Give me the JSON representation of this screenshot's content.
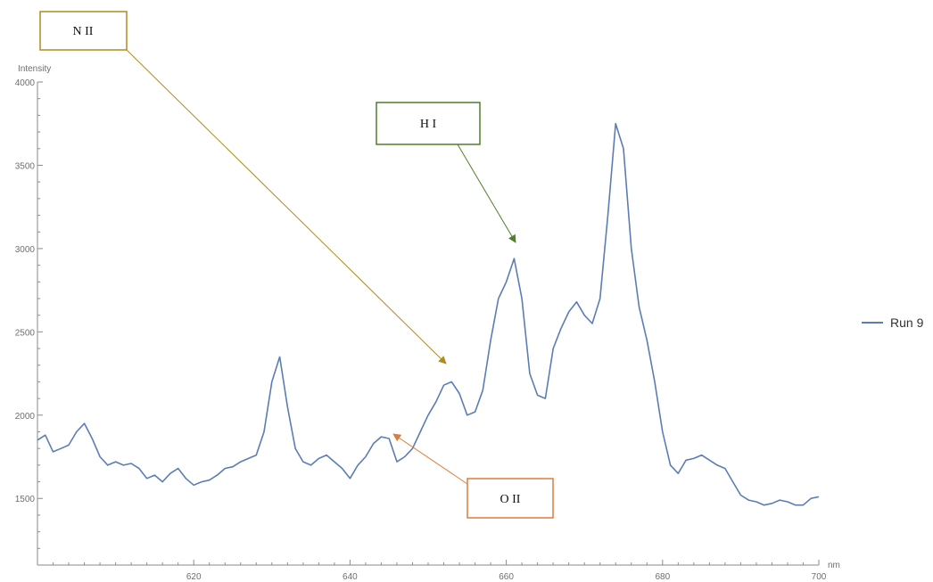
{
  "chart_data": {
    "type": "line",
    "title": "",
    "xlabel": "nm",
    "ylabel": "Intensity",
    "xlim": [
      600,
      700
    ],
    "ylim": [
      1100,
      4000
    ],
    "x_ticks": [
      620,
      640,
      660,
      680,
      700
    ],
    "y_ticks": [
      1500,
      2000,
      2500,
      3000,
      3500,
      4000
    ],
    "grid": false,
    "legend_position": "right",
    "series": [
      {
        "name": "Run 9",
        "color": "#5b7db6",
        "x": [
          600,
          601,
          602,
          603,
          604,
          605,
          606,
          607,
          608,
          609,
          610,
          611,
          612,
          613,
          614,
          615,
          616,
          617,
          618,
          619,
          620,
          621,
          622,
          623,
          624,
          625,
          626,
          627,
          628,
          629,
          630,
          631,
          632,
          633,
          634,
          635,
          636,
          637,
          638,
          639,
          640,
          641,
          642,
          643,
          644,
          645,
          646,
          647,
          648,
          649,
          650,
          651,
          652,
          653,
          654,
          655,
          656,
          657,
          658,
          659,
          660,
          661,
          662,
          663,
          664,
          665,
          666,
          667,
          668,
          669,
          670,
          671,
          672,
          673,
          674,
          675,
          676,
          677,
          678,
          679,
          680,
          681,
          682,
          683,
          684,
          685,
          686,
          687,
          688,
          689,
          690,
          691,
          692,
          693,
          694,
          695,
          696,
          697,
          698,
          699,
          700
        ],
        "values": [
          1850,
          1880,
          1780,
          1800,
          1820,
          1900,
          1950,
          1860,
          1750,
          1700,
          1720,
          1700,
          1710,
          1680,
          1620,
          1640,
          1600,
          1650,
          1680,
          1620,
          1580,
          1600,
          1610,
          1640,
          1680,
          1690,
          1720,
          1740,
          1760,
          1900,
          2200,
          2350,
          2050,
          1800,
          1720,
          1700,
          1740,
          1760,
          1720,
          1680,
          1620,
          1700,
          1750,
          1830,
          1870,
          1860,
          1720,
          1750,
          1800,
          1900,
          2000,
          2080,
          2180,
          2200,
          2130,
          2000,
          2020,
          2150,
          2450,
          2700,
          2800,
          2940,
          2700,
          2250,
          2120,
          2100,
          2400,
          2520,
          2620,
          2680,
          2600,
          2550,
          2700,
          3200,
          3750,
          3600,
          3000,
          2650,
          2450,
          2200,
          1900,
          1700,
          1650,
          1730,
          1740,
          1760,
          1730,
          1700,
          1680,
          1600,
          1520,
          1490,
          1480,
          1460,
          1470,
          1490,
          1480,
          1460,
          1460,
          1500,
          1510
        ]
      }
    ],
    "annotations": [
      {
        "label": "N II",
        "color": "#b08c1c",
        "target_x": 653,
        "target_y": 2210
      },
      {
        "label": "H I",
        "color": "#4f7f2c",
        "target_x": 661,
        "target_y": 2940
      },
      {
        "label": "O II",
        "color": "#e07b39",
        "target_x": 645,
        "target_y": 1840
      }
    ]
  }
}
